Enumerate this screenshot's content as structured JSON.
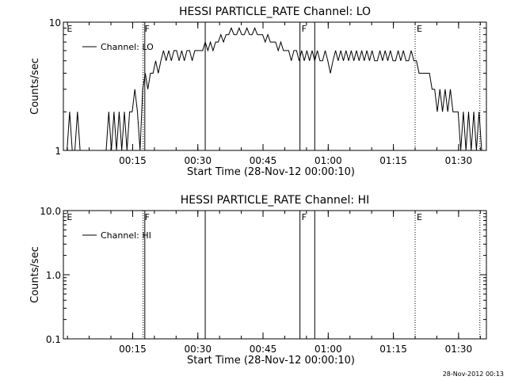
{
  "footer": {
    "timestamp": "28-Nov-2012 00:13"
  },
  "chart_data": [
    {
      "type": "line",
      "title": "HESSI PARTICLE_RATE Channel: LO",
      "xlabel": "Start Time (28-Nov-12 00:00:10)",
      "ylabel": "Counts/sec",
      "yscale": "log",
      "xlim": [
        0.16,
        97.5
      ],
      "ylim": [
        1,
        10
      ],
      "x_ticks": [
        {
          "x": 16.1,
          "label": "00:15"
        },
        {
          "x": 31.1,
          "label": "00:30"
        },
        {
          "x": 46.1,
          "label": "00:45"
        },
        {
          "x": 61.1,
          "label": "01:00"
        },
        {
          "x": 76.1,
          "label": "01:15"
        },
        {
          "x": 91.1,
          "label": "01:30"
        }
      ],
      "y_ticks": [
        {
          "y": 1,
          "label": "1"
        },
        {
          "y": 10,
          "label": "10"
        }
      ],
      "legend": {
        "position": "top-left",
        "label": "Channel: LO"
      },
      "flags": [
        {
          "x": 0.6,
          "label": "E",
          "style": "none"
        },
        {
          "x": 18.5,
          "label": "F",
          "style": "dotted"
        },
        {
          "x": 32.8,
          "label": "",
          "style": "solid"
        },
        {
          "x": 18.9,
          "label": "",
          "style": "solid"
        },
        {
          "x": 54.6,
          "label": "F",
          "style": "solid"
        },
        {
          "x": 58.0,
          "label": "",
          "style": "solid"
        },
        {
          "x": 81.1,
          "label": "E",
          "style": "dotted"
        },
        {
          "x": 96.0,
          "label": "",
          "style": "dotted"
        }
      ],
      "series": [
        {
          "values": [
            [
              1.0,
              1.0
            ],
            [
              1.6,
              2.0
            ],
            [
              2.2,
              1.0
            ],
            [
              2.8,
              1.0
            ],
            [
              3.4,
              2.0
            ],
            [
              4.0,
              1.0
            ],
            [
              4.6,
              1.0
            ],
            [
              5.2,
              1.0
            ],
            [
              5.8,
              1.0
            ],
            [
              6.4,
              1.0
            ],
            [
              7.0,
              1.0
            ],
            [
              7.6,
              1.0
            ],
            [
              8.2,
              1.0
            ],
            [
              8.8,
              1.0
            ],
            [
              9.4,
              1.0
            ],
            [
              10.0,
              1.0
            ],
            [
              10.6,
              2.0
            ],
            [
              11.2,
              1.0
            ],
            [
              11.8,
              2.0
            ],
            [
              12.4,
              1.0
            ],
            [
              13.0,
              2.0
            ],
            [
              13.6,
              1.0
            ],
            [
              14.2,
              2.0
            ],
            [
              14.8,
              1.0
            ],
            [
              15.4,
              2.0
            ],
            [
              16.0,
              2.0
            ],
            [
              16.6,
              3.0
            ],
            [
              17.2,
              2.0
            ],
            [
              17.8,
              1.0
            ],
            [
              18.4,
              3.0
            ],
            [
              19.0,
              4.0
            ],
            [
              19.6,
              3.0
            ],
            [
              20.2,
              4.0
            ],
            [
              20.8,
              4.0
            ],
            [
              21.4,
              5.0
            ],
            [
              22.0,
              4.0
            ],
            [
              22.6,
              5.0
            ],
            [
              23.2,
              6.0
            ],
            [
              23.8,
              5.0
            ],
            [
              24.4,
              6.0
            ],
            [
              25.0,
              5.0
            ],
            [
              25.6,
              6.0
            ],
            [
              26.2,
              6.0
            ],
            [
              26.8,
              5.0
            ],
            [
              27.4,
              6.0
            ],
            [
              28.0,
              5.0
            ],
            [
              28.6,
              6.0
            ],
            [
              29.2,
              6.0
            ],
            [
              29.8,
              5.0
            ],
            [
              30.4,
              6.0
            ],
            [
              31.0,
              6.0
            ],
            [
              31.6,
              6.0
            ],
            [
              32.2,
              6.0
            ],
            [
              32.8,
              7.0
            ],
            [
              33.4,
              6.0
            ],
            [
              34.0,
              7.0
            ],
            [
              34.6,
              6.0
            ],
            [
              35.2,
              7.0
            ],
            [
              35.8,
              7.0
            ],
            [
              36.4,
              8.0
            ],
            [
              37.0,
              7.0
            ],
            [
              37.6,
              8.0
            ],
            [
              38.2,
              8.0
            ],
            [
              38.8,
              9.0
            ],
            [
              39.4,
              8.0
            ],
            [
              40.0,
              8.0
            ],
            [
              40.6,
              9.0
            ],
            [
              41.2,
              8.0
            ],
            [
              41.8,
              8.0
            ],
            [
              42.4,
              9.0
            ],
            [
              43.0,
              8.0
            ],
            [
              43.6,
              8.0
            ],
            [
              44.2,
              9.0
            ],
            [
              44.8,
              8.0
            ],
            [
              45.4,
              8.0
            ],
            [
              46.0,
              8.0
            ],
            [
              46.6,
              7.0
            ],
            [
              47.2,
              8.0
            ],
            [
              47.8,
              7.0
            ],
            [
              48.4,
              7.0
            ],
            [
              49.0,
              7.0
            ],
            [
              49.6,
              6.0
            ],
            [
              50.2,
              7.0
            ],
            [
              50.8,
              6.0
            ],
            [
              51.4,
              6.0
            ],
            [
              52.0,
              6.0
            ],
            [
              52.6,
              5.0
            ],
            [
              53.2,
              6.0
            ],
            [
              53.8,
              6.0
            ],
            [
              54.4,
              5.0
            ],
            [
              55.0,
              6.0
            ],
            [
              55.6,
              5.0
            ],
            [
              56.2,
              6.0
            ],
            [
              56.8,
              5.0
            ],
            [
              57.4,
              6.0
            ],
            [
              58.0,
              5.0
            ],
            [
              58.6,
              6.0
            ],
            [
              59.2,
              5.0
            ],
            [
              59.8,
              5.0
            ],
            [
              60.4,
              6.0
            ],
            [
              61.0,
              5.0
            ],
            [
              61.6,
              4.0
            ],
            [
              62.2,
              5.0
            ],
            [
              62.8,
              6.0
            ],
            [
              63.4,
              5.0
            ],
            [
              64.0,
              6.0
            ],
            [
              64.6,
              5.0
            ],
            [
              65.2,
              6.0
            ],
            [
              65.8,
              5.0
            ],
            [
              66.4,
              6.0
            ],
            [
              67.0,
              5.0
            ],
            [
              67.6,
              6.0
            ],
            [
              68.2,
              5.0
            ],
            [
              68.8,
              6.0
            ],
            [
              69.4,
              5.0
            ],
            [
              70.0,
              6.0
            ],
            [
              70.6,
              5.0
            ],
            [
              71.2,
              6.0
            ],
            [
              71.8,
              5.0
            ],
            [
              72.4,
              5.0
            ],
            [
              73.0,
              6.0
            ],
            [
              73.6,
              5.0
            ],
            [
              74.2,
              6.0
            ],
            [
              74.8,
              5.0
            ],
            [
              75.4,
              6.0
            ],
            [
              76.0,
              5.0
            ],
            [
              76.6,
              5.0
            ],
            [
              77.2,
              6.0
            ],
            [
              77.8,
              5.0
            ],
            [
              78.4,
              6.0
            ],
            [
              79.0,
              5.0
            ],
            [
              79.6,
              5.0
            ],
            [
              80.2,
              6.0
            ],
            [
              80.8,
              5.0
            ],
            [
              81.4,
              5.0
            ],
            [
              82.0,
              4.0
            ],
            [
              82.6,
              4.0
            ],
            [
              83.2,
              4.0
            ],
            [
              83.8,
              4.0
            ],
            [
              84.4,
              4.0
            ],
            [
              85.0,
              3.0
            ],
            [
              85.6,
              3.0
            ],
            [
              86.2,
              2.0
            ],
            [
              86.8,
              3.0
            ],
            [
              87.4,
              2.0
            ],
            [
              88.0,
              3.0
            ],
            [
              88.6,
              2.0
            ],
            [
              89.2,
              3.0
            ],
            [
              89.8,
              2.0
            ],
            [
              90.4,
              2.0
            ],
            [
              91.0,
              2.0
            ],
            [
              91.6,
              1.0
            ],
            [
              92.2,
              2.0
            ],
            [
              92.8,
              1.0
            ],
            [
              93.4,
              2.0
            ],
            [
              94.0,
              1.0
            ],
            [
              94.6,
              2.0
            ],
            [
              95.2,
              1.0
            ],
            [
              95.8,
              2.0
            ],
            [
              96.4,
              1.0
            ]
          ]
        }
      ]
    },
    {
      "type": "line",
      "title": "HESSI PARTICLE_RATE Channel: HI",
      "xlabel": "Start Time (28-Nov-12 00:00:10)",
      "ylabel": "Counts/sec",
      "yscale": "log",
      "xlim": [
        0.16,
        97.5
      ],
      "ylim": [
        0.1,
        10
      ],
      "x_ticks": [
        {
          "x": 16.1,
          "label": "00:15"
        },
        {
          "x": 31.1,
          "label": "00:30"
        },
        {
          "x": 46.1,
          "label": "00:45"
        },
        {
          "x": 61.1,
          "label": "01:00"
        },
        {
          "x": 76.1,
          "label": "01:15"
        },
        {
          "x": 91.1,
          "label": "01:30"
        }
      ],
      "y_ticks": [
        {
          "y": 0.1,
          "label": "0.1"
        },
        {
          "y": 1,
          "label": "1.0"
        },
        {
          "y": 10,
          "label": "10.0"
        }
      ],
      "legend": {
        "position": "top-left",
        "label": "Channel: HI"
      },
      "flags": [
        {
          "x": 0.6,
          "label": "E",
          "style": "none"
        },
        {
          "x": 18.5,
          "label": "F",
          "style": "dotted"
        },
        {
          "x": 18.9,
          "label": "",
          "style": "solid"
        },
        {
          "x": 32.8,
          "label": "",
          "style": "solid"
        },
        {
          "x": 54.6,
          "label": "F",
          "style": "solid"
        },
        {
          "x": 58.0,
          "label": "",
          "style": "solid"
        },
        {
          "x": 81.1,
          "label": "E",
          "style": "dotted"
        },
        {
          "x": 96.0,
          "label": "",
          "style": "dotted"
        }
      ],
      "series": [
        {
          "values": []
        }
      ]
    }
  ]
}
